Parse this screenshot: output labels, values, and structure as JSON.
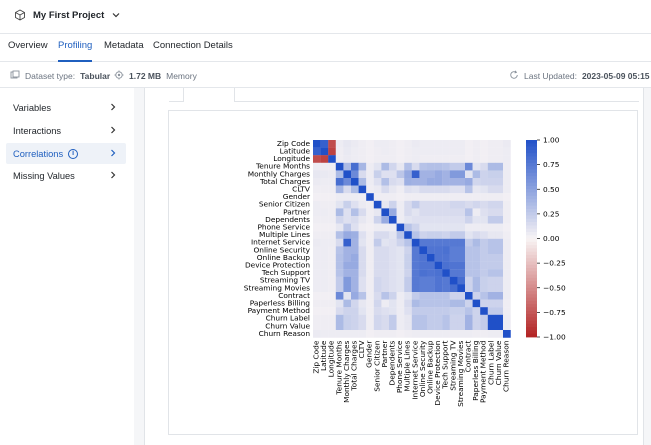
{
  "header": {
    "project_name": "My First Project"
  },
  "tabs": [
    {
      "label": "Overview"
    },
    {
      "label": "Profiling"
    },
    {
      "label": "Metadata"
    },
    {
      "label": "Connection Details"
    }
  ],
  "info": {
    "dataset_type_label": "Dataset type:",
    "dataset_type_value": "Tabular",
    "memory_value": "1.72 MB",
    "memory_label": "Memory",
    "last_updated_label": "Last Updated:",
    "last_updated_value": "2023-05-09 05:15"
  },
  "sidebar": {
    "items": [
      {
        "label": "Variables"
      },
      {
        "label": "Interactions"
      },
      {
        "label": "Correlations"
      },
      {
        "label": "Missing Values"
      }
    ]
  },
  "colors": {
    "accent": "#1f5fbf",
    "heat_pos": "#2050c8",
    "heat_neg": "#b52a2a"
  },
  "chart_data": {
    "type": "heatmap",
    "variables": [
      "Zip Code",
      "Latitude",
      "Longitude",
      "Tenure Months",
      "Monthly Charges",
      "Total Charges",
      "CLTV",
      "Gender",
      "Senior Citizen",
      "Partner",
      "Dependents",
      "Phone Service",
      "Multiple Lines",
      "Internet Service",
      "Online Security",
      "Online Backup",
      "Device Protection",
      "Tech Support",
      "Streaming TV",
      "Streaming Movies",
      "Contract",
      "Paperless Billing",
      "Payment Method",
      "Churn Label",
      "Churn Value",
      "Churn Reason"
    ],
    "x_tick_labels": [
      "Zip Code",
      "Latitude",
      "Longitude",
      "Tenure Months",
      "Monthly Charges",
      "Total Charges",
      "CLTV",
      "Gender",
      "Senior Citizen",
      "Partner",
      "Dependents",
      "Phone Service",
      "Multiple Lines",
      "Internet Service",
      "Online Security",
      "Online Backup",
      "Device Protection",
      "Tech Support",
      "Streaming TV",
      "Streaming Movies",
      "Contract",
      "Paperless Billing",
      "Payment Method",
      "Churn Label",
      "Churn Value",
      "Churn Reason"
    ],
    "colorbar": {
      "range": [
        -1,
        1
      ],
      "ticks": [
        "1.00",
        "0.75",
        "0.50",
        "0.25",
        "0.00",
        "−0.25",
        "−0.50",
        "−0.75",
        "−1.00"
      ]
    },
    "matrix": [
      [
        1.0,
        0.9,
        -0.8,
        0.05,
        0.08,
        0.06,
        0.04,
        0.03,
        0.05,
        0.05,
        0.04,
        0.03,
        0.04,
        0.06,
        0.05,
        0.05,
        0.05,
        0.05,
        0.05,
        0.05,
        0.03,
        0.04,
        0.03,
        0.04,
        0.04,
        0.06
      ],
      [
        0.9,
        1.0,
        -0.85,
        0.04,
        0.07,
        0.05,
        0.04,
        0.03,
        0.04,
        0.05,
        0.04,
        0.03,
        0.04,
        0.05,
        0.05,
        0.05,
        0.05,
        0.05,
        0.05,
        0.05,
        0.03,
        0.04,
        0.03,
        0.04,
        0.04,
        0.05
      ],
      [
        -0.8,
        -0.85,
        1.0,
        0.04,
        0.06,
        0.05,
        0.04,
        0.03,
        0.04,
        0.04,
        0.04,
        0.03,
        0.04,
        0.05,
        0.04,
        0.04,
        0.04,
        0.04,
        0.04,
        0.04,
        0.03,
        0.04,
        0.03,
        0.04,
        0.04,
        0.05
      ],
      [
        0.05,
        0.04,
        0.04,
        1.0,
        0.35,
        0.82,
        0.38,
        0.05,
        0.1,
        0.35,
        0.18,
        0.08,
        0.32,
        0.15,
        0.3,
        0.32,
        0.32,
        0.3,
        0.25,
        0.25,
        0.65,
        0.1,
        0.15,
        0.35,
        0.35,
        0.05
      ],
      [
        0.08,
        0.07,
        0.06,
        0.35,
        1.0,
        0.65,
        0.15,
        0.05,
        0.22,
        0.12,
        0.12,
        0.28,
        0.45,
        0.9,
        0.4,
        0.4,
        0.45,
        0.4,
        0.55,
        0.55,
        0.1,
        0.35,
        0.2,
        0.22,
        0.22,
        0.05
      ],
      [
        0.06,
        0.05,
        0.05,
        0.82,
        0.65,
        1.0,
        0.35,
        0.05,
        0.12,
        0.32,
        0.15,
        0.12,
        0.42,
        0.4,
        0.4,
        0.45,
        0.45,
        0.4,
        0.4,
        0.4,
        0.45,
        0.18,
        0.2,
        0.2,
        0.2,
        0.05
      ],
      [
        0.04,
        0.04,
        0.04,
        0.38,
        0.15,
        0.35,
        1.0,
        0.04,
        0.06,
        0.15,
        0.08,
        0.04,
        0.12,
        0.1,
        0.15,
        0.15,
        0.15,
        0.15,
        0.12,
        0.12,
        0.3,
        0.08,
        0.1,
        0.15,
        0.15,
        0.05
      ],
      [
        0.03,
        0.03,
        0.03,
        0.05,
        0.05,
        0.05,
        0.04,
        1.0,
        0.04,
        0.04,
        0.04,
        0.03,
        0.04,
        0.04,
        0.04,
        0.04,
        0.04,
        0.04,
        0.04,
        0.04,
        0.04,
        0.04,
        0.04,
        0.04,
        0.04,
        0.03
      ],
      [
        0.05,
        0.04,
        0.04,
        0.1,
        0.22,
        0.12,
        0.06,
        0.04,
        1.0,
        0.08,
        0.2,
        0.05,
        0.15,
        0.25,
        0.15,
        0.15,
        0.15,
        0.15,
        0.18,
        0.18,
        0.15,
        0.18,
        0.15,
        0.18,
        0.18,
        0.04
      ],
      [
        0.05,
        0.05,
        0.04,
        0.35,
        0.12,
        0.32,
        0.15,
        0.04,
        0.08,
        1.0,
        0.45,
        0.05,
        0.15,
        0.1,
        0.15,
        0.15,
        0.15,
        0.15,
        0.15,
        0.15,
        0.3,
        0.05,
        0.12,
        0.15,
        0.15,
        0.04
      ],
      [
        0.04,
        0.04,
        0.04,
        0.18,
        0.12,
        0.15,
        0.08,
        0.04,
        0.2,
        0.45,
        1.0,
        0.05,
        0.1,
        0.12,
        0.12,
        0.12,
        0.12,
        0.12,
        0.12,
        0.12,
        0.2,
        0.1,
        0.1,
        0.25,
        0.25,
        0.04
      ],
      [
        0.03,
        0.03,
        0.03,
        0.08,
        0.28,
        0.12,
        0.04,
        0.03,
        0.05,
        0.05,
        0.05,
        1.0,
        0.3,
        0.2,
        0.1,
        0.1,
        0.1,
        0.1,
        0.1,
        0.1,
        0.05,
        0.05,
        0.05,
        0.05,
        0.05,
        0.03
      ],
      [
        0.04,
        0.04,
        0.04,
        0.32,
        0.45,
        0.42,
        0.12,
        0.04,
        0.15,
        0.15,
        0.1,
        0.3,
        1.0,
        0.3,
        0.2,
        0.22,
        0.22,
        0.2,
        0.25,
        0.25,
        0.1,
        0.15,
        0.12,
        0.08,
        0.08,
        0.04
      ],
      [
        0.06,
        0.05,
        0.05,
        0.15,
        0.9,
        0.4,
        0.1,
        0.04,
        0.25,
        0.1,
        0.12,
        0.2,
        0.3,
        1.0,
        0.75,
        0.75,
        0.75,
        0.75,
        0.75,
        0.75,
        0.25,
        0.35,
        0.25,
        0.3,
        0.3,
        0.05
      ],
      [
        0.05,
        0.05,
        0.04,
        0.3,
        0.4,
        0.4,
        0.15,
        0.04,
        0.15,
        0.15,
        0.12,
        0.1,
        0.2,
        0.75,
        1.0,
        0.78,
        0.78,
        0.8,
        0.72,
        0.72,
        0.3,
        0.3,
        0.25,
        0.3,
        0.3,
        0.05
      ],
      [
        0.05,
        0.05,
        0.04,
        0.32,
        0.4,
        0.45,
        0.15,
        0.04,
        0.15,
        0.15,
        0.12,
        0.1,
        0.22,
        0.75,
        0.78,
        1.0,
        0.78,
        0.78,
        0.72,
        0.72,
        0.3,
        0.3,
        0.25,
        0.25,
        0.25,
        0.05
      ],
      [
        0.05,
        0.05,
        0.04,
        0.32,
        0.45,
        0.45,
        0.15,
        0.04,
        0.15,
        0.15,
        0.12,
        0.1,
        0.22,
        0.75,
        0.78,
        0.78,
        1.0,
        0.8,
        0.78,
        0.78,
        0.3,
        0.3,
        0.25,
        0.25,
        0.25,
        0.05
      ],
      [
        0.05,
        0.05,
        0.04,
        0.3,
        0.4,
        0.4,
        0.15,
        0.04,
        0.15,
        0.15,
        0.12,
        0.1,
        0.2,
        0.75,
        0.8,
        0.78,
        0.8,
        1.0,
        0.75,
        0.75,
        0.3,
        0.3,
        0.25,
        0.3,
        0.3,
        0.05
      ],
      [
        0.05,
        0.05,
        0.04,
        0.25,
        0.55,
        0.4,
        0.12,
        0.04,
        0.18,
        0.15,
        0.12,
        0.1,
        0.25,
        0.75,
        0.72,
        0.72,
        0.78,
        0.75,
        1.0,
        0.82,
        0.2,
        0.35,
        0.22,
        0.2,
        0.2,
        0.05
      ],
      [
        0.05,
        0.05,
        0.04,
        0.25,
        0.55,
        0.4,
        0.12,
        0.04,
        0.18,
        0.15,
        0.12,
        0.1,
        0.25,
        0.75,
        0.72,
        0.72,
        0.78,
        0.75,
        0.82,
        1.0,
        0.2,
        0.35,
        0.22,
        0.2,
        0.2,
        0.05
      ],
      [
        0.03,
        0.03,
        0.03,
        0.65,
        0.1,
        0.45,
        0.3,
        0.04,
        0.15,
        0.3,
        0.2,
        0.05,
        0.1,
        0.25,
        0.3,
        0.3,
        0.3,
        0.3,
        0.2,
        0.2,
        1.0,
        0.2,
        0.3,
        0.4,
        0.4,
        0.05
      ],
      [
        0.04,
        0.04,
        0.04,
        0.1,
        0.35,
        0.18,
        0.08,
        0.04,
        0.18,
        0.05,
        0.1,
        0.05,
        0.15,
        0.35,
        0.3,
        0.3,
        0.3,
        0.3,
        0.35,
        0.35,
        0.2,
        1.0,
        0.2,
        0.2,
        0.2,
        0.04
      ],
      [
        0.03,
        0.03,
        0.03,
        0.15,
        0.2,
        0.2,
        0.1,
        0.04,
        0.15,
        0.12,
        0.1,
        0.05,
        0.12,
        0.25,
        0.25,
        0.25,
        0.25,
        0.25,
        0.22,
        0.22,
        0.3,
        0.2,
        1.0,
        0.25,
        0.25,
        0.04
      ],
      [
        0.04,
        0.04,
        0.04,
        0.35,
        0.22,
        0.2,
        0.15,
        0.04,
        0.18,
        0.15,
        0.25,
        0.05,
        0.08,
        0.3,
        0.3,
        0.25,
        0.25,
        0.3,
        0.2,
        0.2,
        0.4,
        0.2,
        0.25,
        1.0,
        1.0,
        0.05
      ],
      [
        0.04,
        0.04,
        0.04,
        0.35,
        0.22,
        0.2,
        0.15,
        0.04,
        0.18,
        0.15,
        0.25,
        0.05,
        0.08,
        0.3,
        0.3,
        0.25,
        0.25,
        0.3,
        0.2,
        0.2,
        0.4,
        0.2,
        0.25,
        1.0,
        1.0,
        0.05
      ],
      [
        0.06,
        0.05,
        0.05,
        0.05,
        0.05,
        0.05,
        0.05,
        0.03,
        0.04,
        0.04,
        0.04,
        0.03,
        0.04,
        0.05,
        0.05,
        0.05,
        0.05,
        0.05,
        0.05,
        0.05,
        0.05,
        0.04,
        0.04,
        0.05,
        0.05,
        1.0
      ]
    ]
  }
}
